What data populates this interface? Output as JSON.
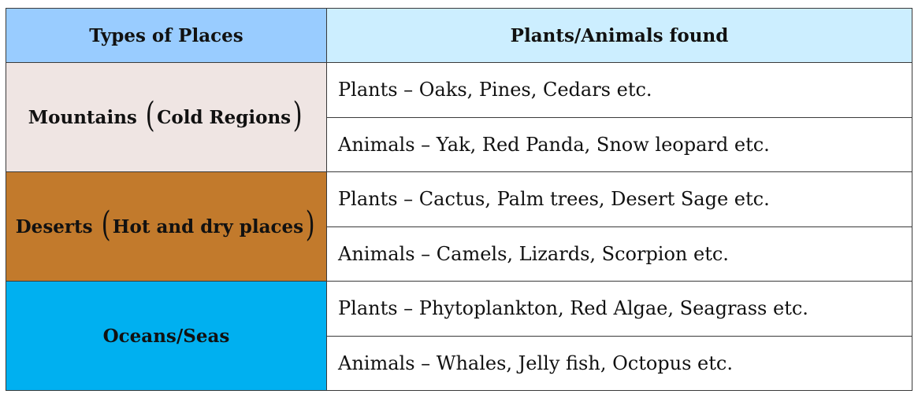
{
  "header": {
    "col1": "Types of Places",
    "col2": "Plants/Animals found"
  },
  "rows": [
    {
      "place": "Mountains",
      "place_detail": "Cold Regions",
      "plants": "Plants – Oaks, Pines, Cedars etc.",
      "animals": "Animals – Yak, Red Panda, Snow leopard etc.",
      "color": "#efe5e3"
    },
    {
      "place": "Deserts",
      "place_detail": "Hot and dry places",
      "plants": "Plants – Cactus, Palm trees, Desert Sage etc.",
      "animals": "Animals – Camels, Lizards, Scorpion etc.",
      "color": "#c27a2c"
    },
    {
      "place": "Oceans/Seas",
      "plants": "Plants – Phytoplankton, Red Algae, Seagrass etc.",
      "animals": "Animals – Whales, Jelly fish, Octopus etc.",
      "color": "#00b0f0"
    }
  ],
  "colors": {
    "header_left": "#99ccff",
    "header_right": "#cceeff",
    "border": "#3a3a3a"
  }
}
